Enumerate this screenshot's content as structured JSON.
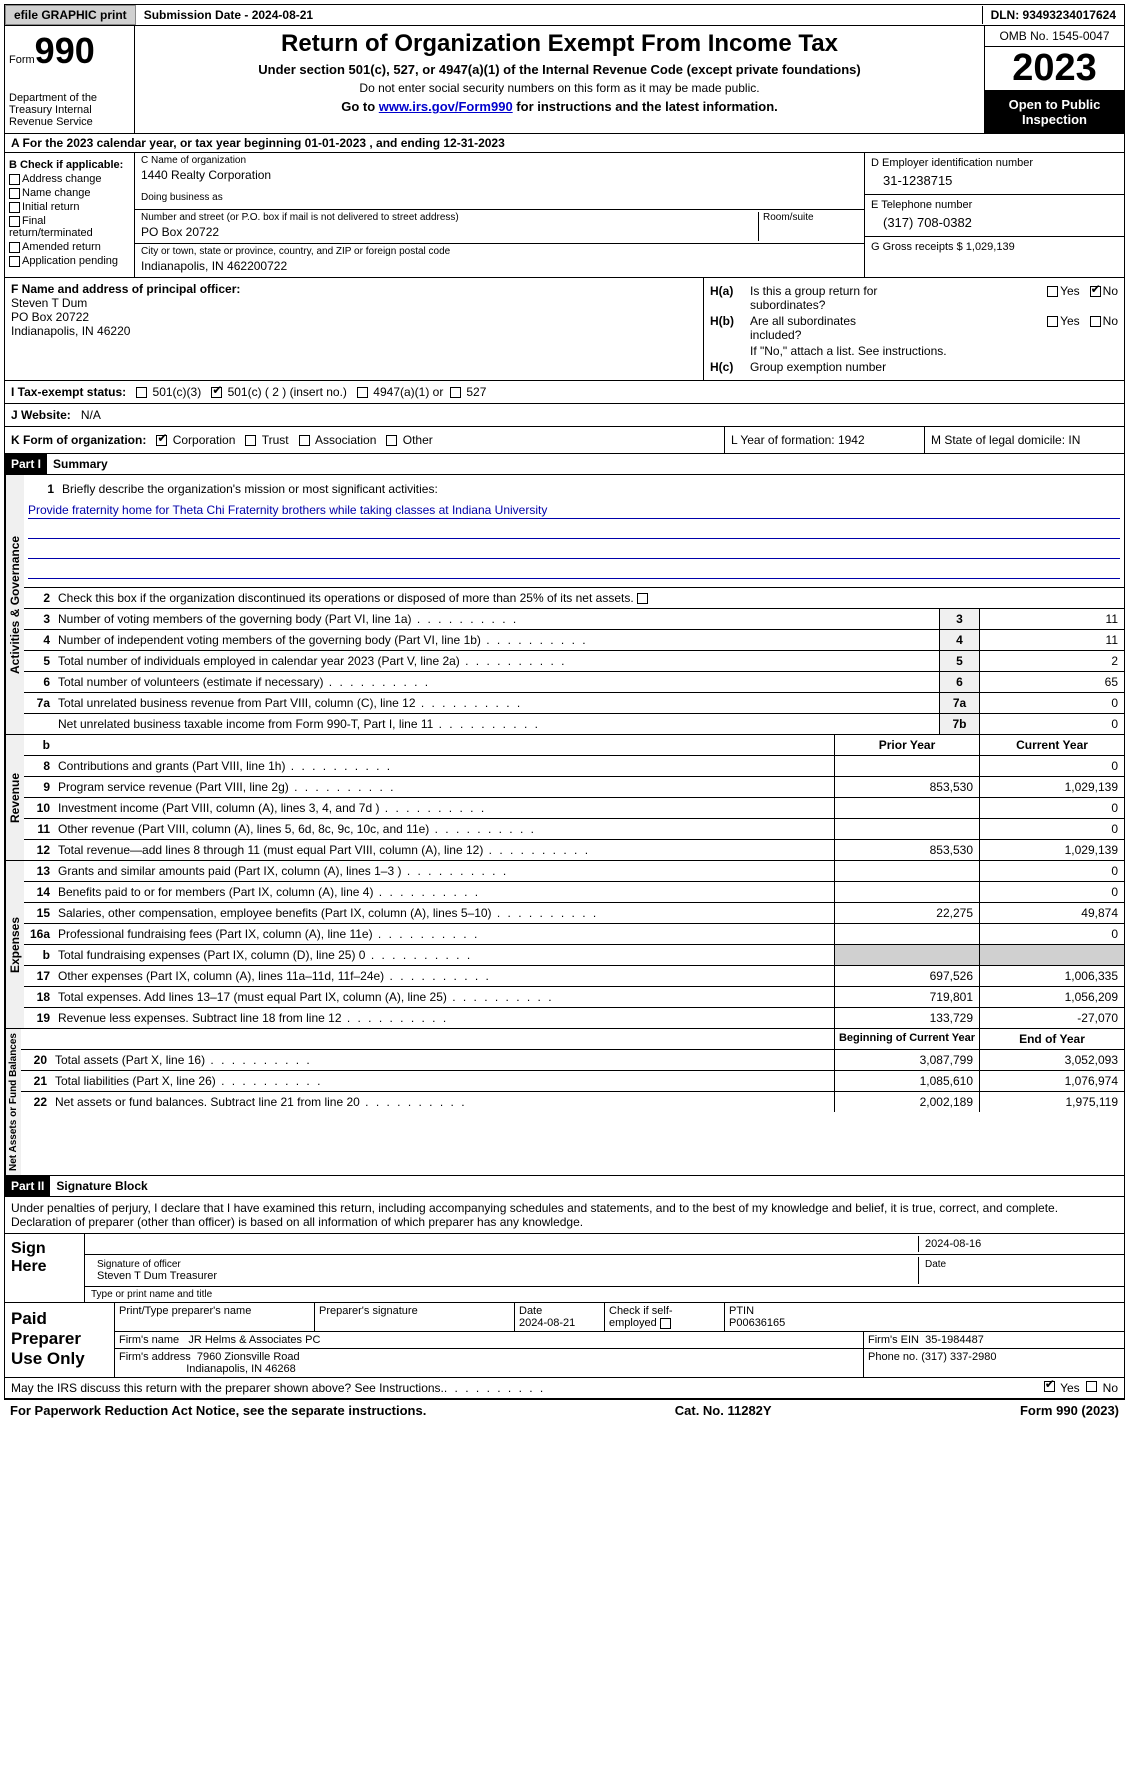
{
  "top_bar": {
    "efile_btn": "efile GRAPHIC print",
    "sub_label": "Submission Date - 2024-08-21",
    "dln": "DLN: 93493234017624"
  },
  "header": {
    "form_word": "Form",
    "form_num": "990",
    "dept": "Department of the Treasury Internal Revenue Service",
    "title": "Return of Organization Exempt From Income Tax",
    "subtitle": "Under section 501(c), 527, or 4947(a)(1) of the Internal Revenue Code (except private foundations)",
    "note1": "Do not enter social security numbers on this form as it may be made public.",
    "goto_pre": "Go to ",
    "goto_link": "www.irs.gov/Form990",
    "goto_post": " for instructions and the latest information.",
    "omb": "OMB No. 1545-0047",
    "year": "2023",
    "open_pub": "Open to Public Inspection"
  },
  "row_a": "A  For the 2023 calendar year, or tax year beginning 01-01-2023    , and ending 12-31-2023",
  "col_b": {
    "label": "B Check if applicable:",
    "opts": [
      "Address change",
      "Name change",
      "Initial return",
      "Final return/terminated",
      "Amended return",
      "Application pending"
    ]
  },
  "col_c": {
    "name_label": "C Name of organization",
    "name": "1440 Realty Corporation",
    "dba_label": "Doing business as",
    "dba": "",
    "street_label": "Number and street (or P.O. box if mail is not delivered to street address)",
    "room_label": "Room/suite",
    "street": "PO Box 20722",
    "city_label": "City or town, state or province, country, and ZIP or foreign postal code",
    "city": "Indianapolis, IN  462200722"
  },
  "col_d": {
    "ein_label": "D Employer identification number",
    "ein": "31-1238715",
    "tel_label": "E Telephone number",
    "tel": "(317) 708-0382",
    "gross_label": "G Gross receipts $ ",
    "gross": "1,029,139"
  },
  "col_f": {
    "label": "F  Name and address of principal officer:",
    "name": "Steven T Dum",
    "addr1": "PO Box 20722",
    "addr2": "Indianapolis, IN   46220"
  },
  "col_h": {
    "a_pre": "H(a)",
    "a_text1": "Is this a group return for",
    "a_text2": "subordinates?",
    "b_pre": "H(b)",
    "b_text1": "Are all subordinates",
    "b_text2": "included?",
    "b_note": "If \"No,\" attach a list. See instructions.",
    "c_pre": "H(c)",
    "c_text": "Group exemption number",
    "yes": "Yes",
    "no": "No"
  },
  "row_i": {
    "label": "I     Tax-exempt status:",
    "opts": [
      "501(c)(3)",
      "501(c) ( 2 ) (insert no.)",
      "4947(a)(1) or",
      "527"
    ]
  },
  "row_j": {
    "label": "J     Website:",
    "val": "N/A"
  },
  "row_k": {
    "label": "K Form of organization:",
    "opts": [
      "Corporation",
      "Trust",
      "Association",
      "Other"
    ],
    "l": "L Year of formation: 1942",
    "m": "M State of legal domicile: IN"
  },
  "part1": {
    "tag": "Part I",
    "title": "Summary"
  },
  "mission": {
    "label": "Briefly describe the organization's mission or most significant activities:",
    "text": "Provide fraternity home for Theta Chi Fraternity brothers while taking classes at Indiana University"
  },
  "line2": "Check this box       if the organization discontinued its operations or disposed of more than 25% of its net assets.",
  "gov_lines": [
    {
      "n": "3",
      "t": "Number of voting members of the governing body (Part VI, line 1a)",
      "b": "3",
      "v": "11"
    },
    {
      "n": "4",
      "t": "Number of independent voting members of the governing body (Part VI, line 1b)",
      "b": "4",
      "v": "11"
    },
    {
      "n": "5",
      "t": "Total number of individuals employed in calendar year 2023 (Part V, line 2a)",
      "b": "5",
      "v": "2"
    },
    {
      "n": "6",
      "t": "Total number of volunteers (estimate if necessary)",
      "b": "6",
      "v": "65"
    },
    {
      "n": "7a",
      "t": "Total unrelated business revenue from Part VIII, column (C), line 12",
      "b": "7a",
      "v": "0"
    },
    {
      "n": "",
      "t": "Net unrelated business taxable income from Form 990-T, Part I, line 11",
      "b": "7b",
      "v": "0"
    }
  ],
  "rev_hdr": {
    "b": "b",
    "py": "Prior Year",
    "cy": "Current Year"
  },
  "rev_lines": [
    {
      "n": "8",
      "t": "Contributions and grants (Part VIII, line 1h)",
      "py": "",
      "cy": "0"
    },
    {
      "n": "9",
      "t": "Program service revenue (Part VIII, line 2g)",
      "py": "853,530",
      "cy": "1,029,139"
    },
    {
      "n": "10",
      "t": "Investment income (Part VIII, column (A), lines 3, 4, and 7d )",
      "py": "",
      "cy": "0"
    },
    {
      "n": "11",
      "t": "Other revenue (Part VIII, column (A), lines 5, 6d, 8c, 9c, 10c, and 11e)",
      "py": "",
      "cy": "0"
    },
    {
      "n": "12",
      "t": "Total revenue—add lines 8 through 11 (must equal Part VIII, column (A), line 12)",
      "py": "853,530",
      "cy": "1,029,139"
    }
  ],
  "exp_lines": [
    {
      "n": "13",
      "t": "Grants and similar amounts paid (Part IX, column (A), lines 1–3 )",
      "py": "",
      "cy": "0"
    },
    {
      "n": "14",
      "t": "Benefits paid to or for members (Part IX, column (A), line 4)",
      "py": "",
      "cy": "0"
    },
    {
      "n": "15",
      "t": "Salaries, other compensation, employee benefits (Part IX, column (A), lines 5–10)",
      "py": "22,275",
      "cy": "49,874"
    },
    {
      "n": "16a",
      "t": "Professional fundraising fees (Part IX, column (A), line 11e)",
      "py": "",
      "cy": "0"
    },
    {
      "n": "b",
      "t": "Total fundraising expenses (Part IX, column (D), line 25) 0",
      "py": "shade",
      "cy": "shade"
    },
    {
      "n": "17",
      "t": "Other expenses (Part IX, column (A), lines 11a–11d, 11f–24e)",
      "py": "697,526",
      "cy": "1,006,335"
    },
    {
      "n": "18",
      "t": "Total expenses. Add lines 13–17 (must equal Part IX, column (A), line 25)",
      "py": "719,801",
      "cy": "1,056,209"
    },
    {
      "n": "19",
      "t": "Revenue less expenses. Subtract line 18 from line 12",
      "py": "133,729",
      "cy": "-27,070"
    }
  ],
  "na_hdr": {
    "py": "Beginning of Current Year",
    "cy": "End of Year"
  },
  "na_lines": [
    {
      "n": "20",
      "t": "Total assets (Part X, line 16)",
      "py": "3,087,799",
      "cy": "3,052,093"
    },
    {
      "n": "21",
      "t": "Total liabilities (Part X, line 26)",
      "py": "1,085,610",
      "cy": "1,076,974"
    },
    {
      "n": "22",
      "t": "Net assets or fund balances. Subtract line 21 from line 20",
      "py": "2,002,189",
      "cy": "1,975,119"
    }
  ],
  "part2": {
    "tag": "Part II",
    "title": "Signature Block"
  },
  "sig": {
    "note": "Under penalties of perjury, I declare that I have examined this return, including accompanying schedules and statements, and to the best of my knowledge and belief, it is true, correct, and complete. Declaration of preparer (other than officer) is based on all information of which preparer has any knowledge.",
    "sign_here": "Sign Here",
    "sig_label": "Signature of officer",
    "sig_name": "Steven T Dum  Treasurer",
    "date_label": "Date",
    "date": "2024-08-16",
    "type_label": "Type or print name and title"
  },
  "paid": {
    "title": "Paid Preparer Use Only",
    "prep_name_label": "Print/Type preparer's name",
    "prep_name": "",
    "prep_sig_label": "Preparer's signature",
    "date_label": "Date",
    "date": "2024-08-21",
    "self_label": "Check        if self-employed",
    "ptin_label": "PTIN",
    "ptin": "P00636165",
    "firm_name_label": "Firm's name",
    "firm_name": "JR Helms & Associates PC",
    "firm_ein_label": "Firm's EIN",
    "firm_ein": "35-1984487",
    "firm_addr_label": "Firm's address",
    "firm_addr1": "7960 Zionsville Road",
    "firm_addr2": "Indianapolis, IN   46268",
    "phone_label": "Phone no.",
    "phone": "(317) 337-2980"
  },
  "discuss": {
    "text": "May the IRS discuss this return with the preparer shown above? See Instructions.",
    "yes": "Yes",
    "no": "No"
  },
  "footer": {
    "left": "For Paperwork Reduction Act Notice, see the separate instructions.",
    "mid": "Cat. No. 11282Y",
    "right_pre": "Form ",
    "right_form": "990",
    "right_post": " (2023)"
  },
  "vert": {
    "gov": "Activities & Governance",
    "rev": "Revenue",
    "exp": "Expenses",
    "na": "Net Assets or Fund Balances"
  }
}
